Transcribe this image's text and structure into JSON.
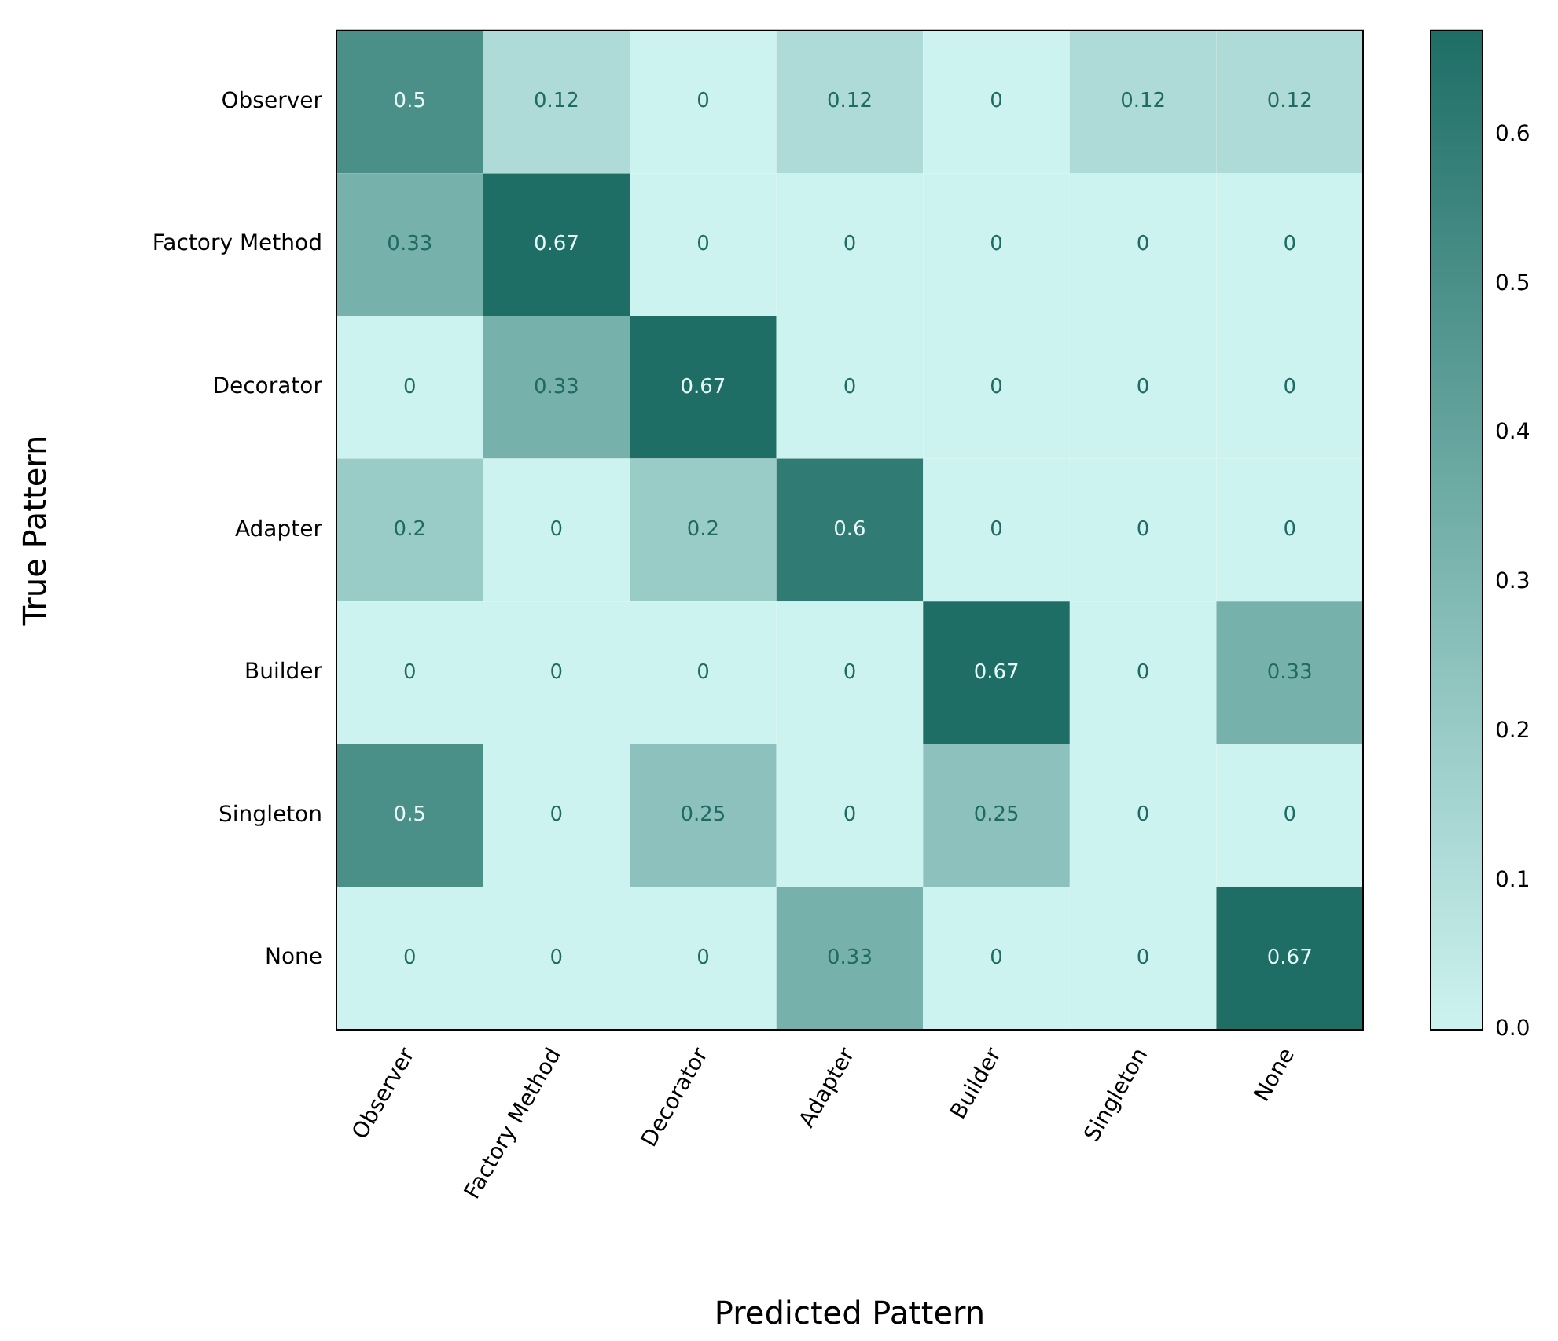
{
  "chart_data": {
    "type": "heatmap",
    "xlabel": "Predicted Pattern",
    "ylabel": "True Pattern",
    "categories": [
      "Observer",
      "Factory Method",
      "Decorator",
      "Adapter",
      "Builder",
      "Singleton",
      "None"
    ],
    "y_categories": [
      "Observer",
      "Factory Method",
      "Decorator",
      "Adapter",
      "Builder",
      "Singleton",
      "None"
    ],
    "cells": [
      [
        0.5,
        0.12,
        0,
        0.12,
        0,
        0.12,
        0.12
      ],
      [
        0.33,
        0.67,
        0,
        0,
        0,
        0,
        0
      ],
      [
        0,
        0.33,
        0.67,
        0,
        0,
        0,
        0
      ],
      [
        0.2,
        0,
        0.2,
        0.6,
        0,
        0,
        0
      ],
      [
        0,
        0,
        0,
        0,
        0.67,
        0,
        0.33
      ],
      [
        0.5,
        0,
        0.25,
        0,
        0.25,
        0,
        0
      ],
      [
        0,
        0,
        0,
        0.33,
        0,
        0,
        0.67
      ]
    ],
    "data_labels": true,
    "clim": [
      0,
      0.67
    ],
    "cticks": [
      {
        "value": 0,
        "label": "0.0"
      },
      {
        "value": 0.1,
        "label": "0.1"
      },
      {
        "value": 0.2,
        "label": "0.2"
      },
      {
        "value": 0.3,
        "label": "0.3"
      },
      {
        "value": 0.4,
        "label": "0.4"
      },
      {
        "value": 0.5,
        "label": "0.5"
      },
      {
        "value": 0.6,
        "label": "0.6"
      }
    ]
  }
}
